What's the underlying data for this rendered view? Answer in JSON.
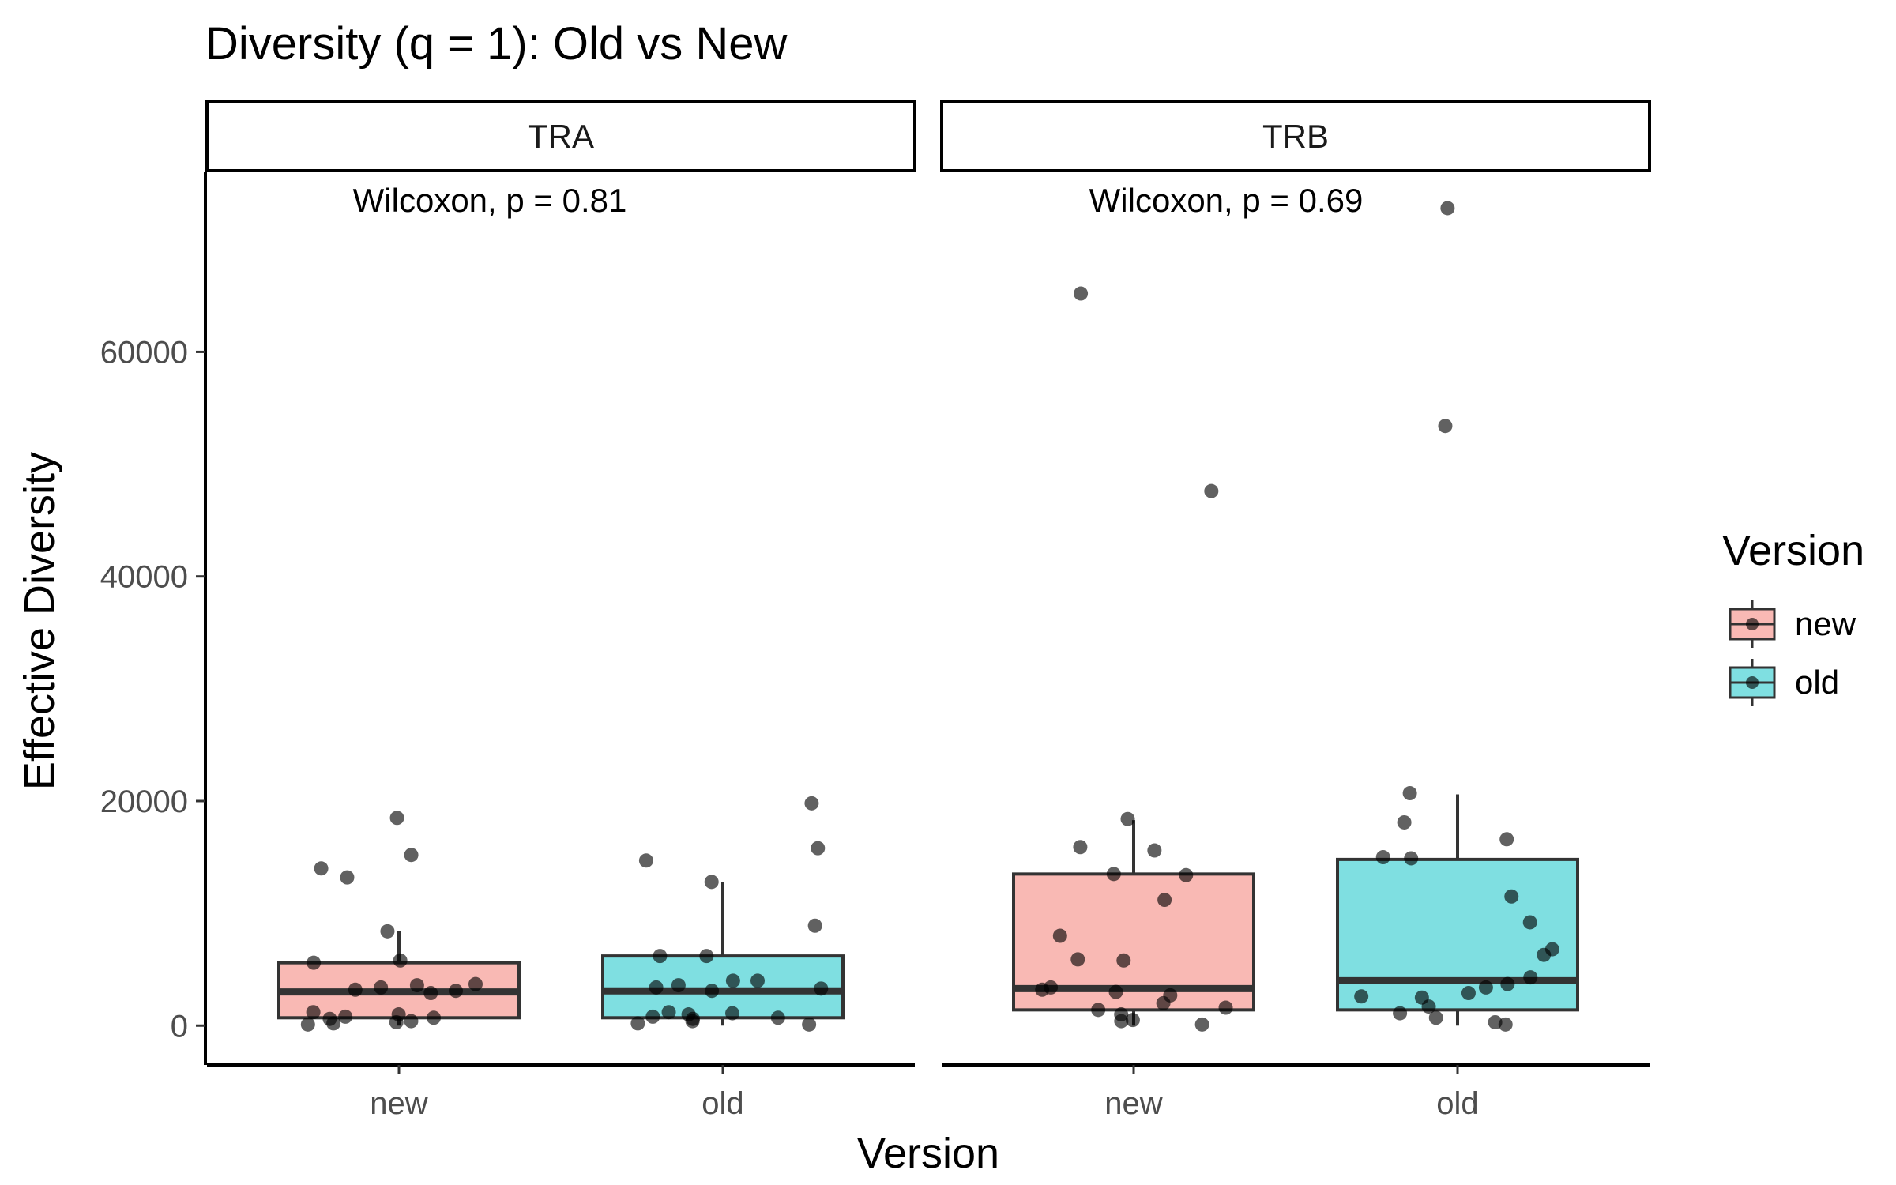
{
  "chart_data": {
    "type": "boxplot",
    "title": "Diversity (q = 1): Old vs New",
    "xlabel": "Version",
    "ylabel": "Effective Diversity",
    "ylim": [
      -3500,
      76000
    ],
    "yticks": [
      0,
      20000,
      40000,
      60000
    ],
    "categories": [
      "new",
      "old"
    ],
    "legend": {
      "title": "Version",
      "position": "right",
      "entries": [
        {
          "label": "new",
          "color": "#F8766D"
        },
        {
          "label": "old",
          "color": "#00BFC4"
        }
      ]
    },
    "grid": false,
    "facets": [
      {
        "label": "TRA",
        "annotation": "Wilcoxon, p = 0.81",
        "groups": [
          {
            "name": "new",
            "q1": 700,
            "median": 3000,
            "q3": 5600,
            "whisker_low": 0,
            "whisker_high": 8400,
            "points": [
              18500,
              15200,
              14000,
              13200,
              8400,
              5800,
              5600,
              3700,
              3600,
              3400,
              3200,
              3100,
              2900,
              1200,
              1000,
              800,
              700,
              600,
              400,
              300,
              200,
              100
            ]
          },
          {
            "name": "old",
            "q1": 700,
            "median": 3100,
            "q3": 6200,
            "whisker_low": 0,
            "whisker_high": 12800,
            "points": [
              19800,
              15800,
              14700,
              12800,
              8900,
              6200,
              6200,
              4000,
              4000,
              3600,
              3400,
              3300,
              3100,
              1200,
              1100,
              1000,
              800,
              700,
              600,
              400,
              200,
              100
            ]
          }
        ]
      },
      {
        "label": "TRB",
        "annotation": "Wilcoxon, p = 0.69",
        "groups": [
          {
            "name": "new",
            "q1": 1400,
            "median": 3300,
            "q3": 13500,
            "whisker_low": 0,
            "whisker_high": 18300,
            "points": [
              65200,
              47600,
              18400,
              15900,
              15600,
              13500,
              13400,
              11200,
              8000,
              5900,
              5800,
              3400,
              3200,
              3000,
              2700,
              2000,
              1600,
              1400,
              1000,
              500,
              400,
              100
            ]
          },
          {
            "name": "old",
            "q1": 1400,
            "median": 4000,
            "q3": 14800,
            "whisker_low": 0,
            "whisker_high": 20600,
            "points": [
              72800,
              53400,
              20700,
              18100,
              16600,
              15000,
              14900,
              11500,
              9200,
              6800,
              6300,
              4300,
              3700,
              3400,
              2900,
              2600,
              2500,
              1700,
              1100,
              700,
              300,
              100
            ]
          }
        ]
      }
    ]
  }
}
